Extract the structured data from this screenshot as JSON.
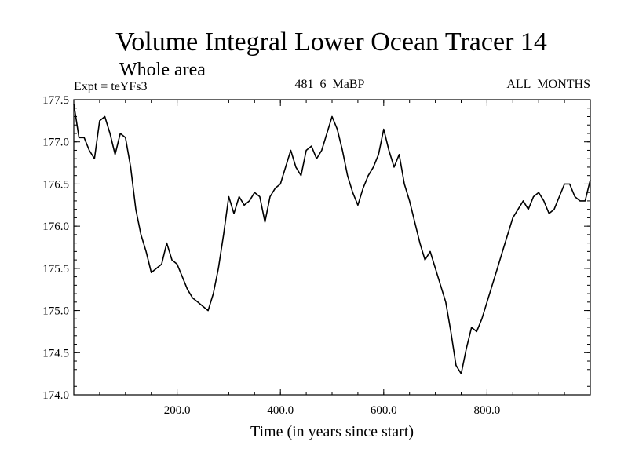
{
  "chart_data": {
    "type": "line",
    "title": "Volume Integral Lower Ocean Tracer 14",
    "subtitle": "Whole area",
    "expt_label": "Expt = teYFs3",
    "center_label": "481_6_MaBP",
    "right_label": "ALL_MONTHS",
    "xlabel": "Time (in years since start)",
    "ylabel": "",
    "xlim": [
      0,
      1000
    ],
    "ylim": [
      174.0,
      177.5
    ],
    "xticks": [
      200,
      400,
      600,
      800
    ],
    "xtick_labels": [
      "200.0",
      "400.0",
      "600.0",
      "800.0"
    ],
    "yticks": [
      174.0,
      174.5,
      175.0,
      175.5,
      176.0,
      176.5,
      177.0,
      177.5
    ],
    "ytick_labels": [
      "174.0",
      "174.5",
      "175.0",
      "175.5",
      "176.0",
      "176.5",
      "177.0",
      "177.5"
    ],
    "grid": false,
    "series": [
      {
        "name": "Tracer 14",
        "x": [
          0,
          10,
          20,
          30,
          40,
          50,
          60,
          70,
          80,
          90,
          100,
          110,
          120,
          130,
          140,
          150,
          160,
          170,
          180,
          190,
          200,
          210,
          220,
          230,
          240,
          250,
          260,
          270,
          280,
          290,
          300,
          310,
          320,
          330,
          340,
          350,
          360,
          370,
          380,
          390,
          400,
          410,
          420,
          430,
          440,
          450,
          460,
          470,
          480,
          490,
          500,
          510,
          520,
          530,
          540,
          550,
          560,
          570,
          580,
          590,
          600,
          610,
          620,
          630,
          640,
          650,
          660,
          670,
          680,
          690,
          700,
          710,
          720,
          730,
          740,
          750,
          760,
          770,
          780,
          790,
          800,
          810,
          820,
          830,
          840,
          850,
          860,
          870,
          880,
          890,
          900,
          910,
          920,
          930,
          940,
          950,
          960,
          970,
          980,
          990,
          1000
        ],
        "values": [
          177.45,
          177.05,
          177.05,
          176.9,
          176.8,
          177.25,
          177.3,
          177.1,
          176.85,
          177.1,
          177.05,
          176.7,
          176.2,
          175.9,
          175.7,
          175.45,
          175.5,
          175.55,
          175.8,
          175.6,
          175.55,
          175.4,
          175.25,
          175.15,
          175.1,
          175.05,
          175.0,
          175.2,
          175.5,
          175.9,
          176.35,
          176.15,
          176.35,
          176.25,
          176.3,
          176.4,
          176.35,
          176.05,
          176.35,
          176.45,
          176.5,
          176.7,
          176.9,
          176.7,
          176.6,
          176.9,
          176.95,
          176.8,
          176.9,
          177.1,
          177.3,
          177.15,
          176.9,
          176.6,
          176.4,
          176.25,
          176.45,
          176.6,
          176.7,
          176.85,
          177.15,
          176.9,
          176.7,
          176.85,
          176.5,
          176.3,
          176.05,
          175.8,
          175.6,
          175.7,
          175.5,
          175.3,
          175.1,
          174.75,
          174.35,
          174.25,
          174.55,
          174.8,
          174.75,
          174.9,
          175.1,
          175.3,
          175.5,
          175.7,
          175.9,
          176.1,
          176.2,
          176.3,
          176.2,
          176.35,
          176.4,
          176.3,
          176.15,
          176.2,
          176.35,
          176.5,
          176.5,
          176.35,
          176.3,
          176.3,
          176.55
        ]
      }
    ]
  },
  "colors": {
    "line": "#000000",
    "axis": "#000000",
    "background": "#ffffff"
  }
}
